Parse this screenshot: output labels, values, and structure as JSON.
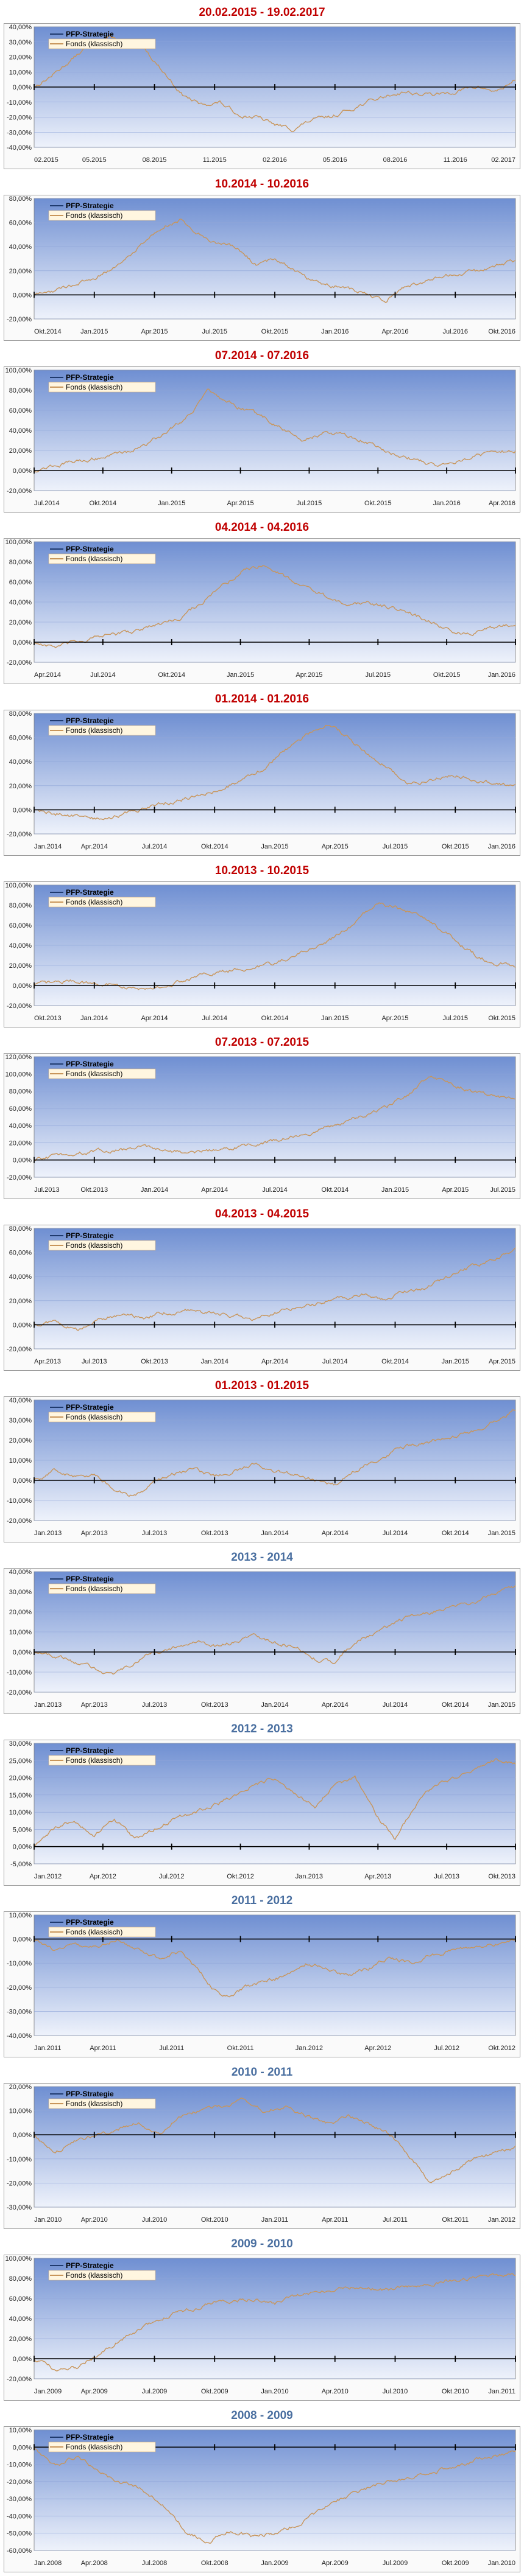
{
  "colors": {
    "title_red": "#c00000",
    "title_blue": "#4a6fa0",
    "strategy_line": "#1f3a6e",
    "fund_line": "#c8955a",
    "plot_bg_top": "#6f8fd2",
    "plot_bg_bottom": "#eef2fb"
  },
  "chart_data": [
    {
      "type": "line",
      "title": "20.02.2015 - 19.02.2017",
      "title_color": "red",
      "y_ticks": [
        "40,00%",
        "30,00%",
        "20,00%",
        "10,00%",
        "0,00%",
        "-10,00%",
        "-20,00%",
        "-30,00%",
        "-40,00%"
      ],
      "ylim": [
        -40,
        40
      ],
      "x_ticks": [
        "02.2015",
        "05.2015",
        "08.2015",
        "11.2015",
        "02.2016",
        "05.2016",
        "08.2016",
        "11.2016",
        "02.2017"
      ],
      "legend": "top-left",
      "series": [
        {
          "name": "PFP-Strategie",
          "values": [
            0,
            0
          ]
        },
        {
          "name": "Fonds (klassisch)",
          "values": [
            0,
            8,
            18,
            28,
            33,
            30,
            25,
            10,
            -5,
            -12,
            -10,
            -18,
            -20,
            -25,
            -28,
            -22,
            -20,
            -15,
            -10,
            -6,
            -3,
            -5,
            -5,
            -2,
            0,
            -3,
            5
          ]
        }
      ]
    },
    {
      "type": "line",
      "title": "10.2014 - 10.2016",
      "title_color": "red",
      "y_ticks": [
        "80,00%",
        "60,00%",
        "40,00%",
        "20,00%",
        "0,00%",
        "-20,00%"
      ],
      "ylim": [
        -20,
        80
      ],
      "x_ticks": [
        "Okt.2014",
        "Jan.2015",
        "Apr.2015",
        "Jul.2015",
        "Okt.2015",
        "Jan.2016",
        "Apr.2016",
        "Jul.2016",
        "Okt.2016"
      ],
      "legend": "top-left",
      "series": [
        {
          "name": "PFP-Strategie",
          "values": [
            0,
            0
          ]
        },
        {
          "name": "Fonds (klassisch)",
          "values": [
            0,
            3,
            8,
            12,
            20,
            30,
            45,
            58,
            62,
            50,
            42,
            38,
            25,
            30,
            22,
            12,
            8,
            5,
            0,
            -5,
            8,
            10,
            15,
            18,
            20,
            25,
            28
          ]
        }
      ]
    },
    {
      "type": "line",
      "title": "07.2014 - 07.2016",
      "title_color": "red",
      "y_ticks": [
        "100,00%",
        "80,00%",
        "60,00%",
        "40,00%",
        "20,00%",
        "0,00%",
        "-20,00%"
      ],
      "ylim": [
        -20,
        100
      ],
      "x_ticks": [
        "Jul.2014",
        "Okt.2014",
        "Jan.2015",
        "Apr.2015",
        "Jul.2015",
        "Okt.2015",
        "Jan.2016",
        "Apr.2016"
      ],
      "legend": "top-left",
      "series": [
        {
          "name": "PFP-Strategie",
          "values": [
            0,
            0
          ]
        },
        {
          "name": "Fonds (klassisch)",
          "values": [
            0,
            5,
            8,
            12,
            15,
            20,
            28,
            40,
            55,
            78,
            68,
            60,
            52,
            40,
            30,
            38,
            35,
            30,
            22,
            15,
            10,
            5,
            10,
            15,
            18,
            20
          ]
        }
      ]
    },
    {
      "type": "line",
      "title": "04.2014 - 04.2016",
      "title_color": "red",
      "y_ticks": [
        "100,00%",
        "80,00%",
        "60,00%",
        "40,00%",
        "20,00%",
        "0,00%",
        "-20,00%"
      ],
      "ylim": [
        -20,
        100
      ],
      "x_ticks": [
        "Apr.2014",
        "Jul.2014",
        "Okt.2014",
        "Jan.2015",
        "Apr.2015",
        "Jul.2015",
        "Okt.2015",
        "Jan.2016"
      ],
      "legend": "top-left",
      "series": [
        {
          "name": "PFP-Strategie",
          "values": [
            0,
            0
          ]
        },
        {
          "name": "Fonds (klassisch)",
          "values": [
            0,
            -5,
            0,
            5,
            8,
            12,
            18,
            25,
            40,
            55,
            72,
            78,
            65,
            55,
            45,
            35,
            40,
            35,
            28,
            20,
            10,
            8,
            15,
            18
          ]
        }
      ]
    },
    {
      "type": "line",
      "title": "01.2014 - 01.2016",
      "title_color": "red",
      "y_ticks": [
        "80,00%",
        "60,00%",
        "40,00%",
        "20,00%",
        "0,00%",
        "-20,00%"
      ],
      "ylim": [
        -20,
        80
      ],
      "x_ticks": [
        "Jan.2014",
        "Apr.2014",
        "Jul.2014",
        "Okt.2014",
        "Jan.2015",
        "Apr.2015",
        "Jul.2015",
        "Okt.2015",
        "Jan.2016"
      ],
      "legend": "top-left",
      "series": [
        {
          "name": "PFP-Strategie",
          "values": [
            0,
            0
          ]
        },
        {
          "name": "Fonds (klassisch)",
          "values": [
            0,
            -3,
            -5,
            -8,
            -5,
            0,
            5,
            8,
            12,
            18,
            25,
            35,
            50,
            62,
            72,
            60,
            45,
            35,
            20,
            25,
            30,
            25,
            22,
            20
          ]
        }
      ]
    },
    {
      "type": "line",
      "title": "10.2013 - 10.2015",
      "title_color": "red",
      "y_ticks": [
        "100,00%",
        "80,00%",
        "60,00%",
        "40,00%",
        "20,00%",
        "0,00%",
        "-20,00%"
      ],
      "ylim": [
        -20,
        100
      ],
      "x_ticks": [
        "Okt.2013",
        "Jan.2014",
        "Apr.2014",
        "Jul.2014",
        "Okt.2014",
        "Jan.2015",
        "Apr.2015",
        "Jul.2015",
        "Okt.2015"
      ],
      "legend": "top-left",
      "series": [
        {
          "name": "PFP-Strategie",
          "values": [
            0,
            0
          ]
        },
        {
          "name": "Fonds (klassisch)",
          "values": [
            0,
            3,
            5,
            2,
            0,
            -3,
            -2,
            2,
            8,
            12,
            15,
            18,
            22,
            30,
            38,
            48,
            62,
            82,
            78,
            70,
            60,
            45,
            30,
            22,
            20
          ]
        }
      ]
    },
    {
      "type": "line",
      "title": "07.2013 - 07.2015",
      "title_color": "red",
      "y_ticks": [
        "120,00%",
        "100,00%",
        "80,00%",
        "60,00%",
        "40,00%",
        "20,00%",
        "0,00%",
        "-20,00%"
      ],
      "ylim": [
        -20,
        120
      ],
      "x_ticks": [
        "Jul.2013",
        "Okt.2013",
        "Jan.2014",
        "Apr.2014",
        "Jul.2014",
        "Okt.2014",
        "Jan.2015",
        "Apr.2015",
        "Jul.2015"
      ],
      "legend": "top-left",
      "series": [
        {
          "name": "PFP-Strategie",
          "values": [
            0,
            0
          ]
        },
        {
          "name": "Fonds (klassisch)",
          "values": [
            0,
            5,
            8,
            10,
            12,
            15,
            12,
            8,
            10,
            15,
            18,
            22,
            28,
            35,
            42,
            50,
            60,
            75,
            95,
            90,
            80,
            75,
            70
          ]
        }
      ]
    },
    {
      "type": "line",
      "title": "04.2013 - 04.2015",
      "title_color": "red",
      "y_ticks": [
        "80,00%",
        "60,00%",
        "40,00%",
        "20,00%",
        "0,00%",
        "-20,00%"
      ],
      "ylim": [
        -20,
        80
      ],
      "x_ticks": [
        "Apr.2013",
        "Jul.2013",
        "Okt.2013",
        "Jan.2014",
        "Apr.2014",
        "Jul.2014",
        "Okt.2014",
        "Jan.2015",
        "Apr.2015"
      ],
      "legend": "top-left",
      "series": [
        {
          "name": "PFP-Strategie",
          "values": [
            0,
            0
          ]
        },
        {
          "name": "Fonds (klassisch)",
          "values": [
            0,
            3,
            -5,
            5,
            8,
            6,
            10,
            12,
            10,
            8,
            5,
            10,
            15,
            18,
            22,
            25,
            22,
            28,
            32,
            40,
            48,
            55,
            62
          ]
        }
      ]
    },
    {
      "type": "line",
      "title": "01.2013 - 01.2015",
      "title_color": "red",
      "y_ticks": [
        "40,00%",
        "30,00%",
        "20,00%",
        "10,00%",
        "0,00%",
        "-10,00%",
        "-20,00%"
      ],
      "ylim": [
        -20,
        40
      ],
      "x_ticks": [
        "Jan.2013",
        "Apr.2013",
        "Jul.2013",
        "Okt.2013",
        "Jan.2014",
        "Apr.2014",
        "Jul.2014",
        "Okt.2014",
        "Jan.2015"
      ],
      "legend": "top-left",
      "series": [
        {
          "name": "PFP-Strategie",
          "values": [
            0,
            0
          ]
        },
        {
          "name": "Fonds (klassisch)",
          "values": [
            0,
            5,
            2,
            3,
            -5,
            -8,
            0,
            3,
            5,
            2,
            5,
            8,
            5,
            3,
            0,
            -2,
            5,
            10,
            15,
            18,
            20,
            22,
            25,
            30,
            35
          ]
        }
      ]
    },
    {
      "type": "line",
      "title": "2013 - 2014",
      "title_color": "blue",
      "y_ticks": [
        "40,00%",
        "30,00%",
        "20,00%",
        "10,00%",
        "0,00%",
        "-10,00%",
        "-20,00%"
      ],
      "ylim": [
        -20,
        40
      ],
      "x_ticks": [
        "Jan.2013",
        "Apr.2013",
        "Jul.2013",
        "Okt.2013",
        "Jan.2014",
        "Apr.2014",
        "Jul.2014",
        "Okt.2014",
        "Jan.2015"
      ],
      "legend": "top-left",
      "series": [
        {
          "name": "PFP-Strategie",
          "values": [
            0,
            0
          ]
        },
        {
          "name": "Fonds (klassisch)",
          "values": [
            0,
            -2,
            -5,
            -8,
            -12,
            -5,
            0,
            2,
            5,
            3,
            5,
            8,
            5,
            3,
            -3,
            -5,
            5,
            10,
            15,
            18,
            20,
            22,
            25,
            30,
            33
          ]
        }
      ]
    },
    {
      "type": "line",
      "title": "2012 - 2013",
      "title_color": "blue",
      "y_ticks": [
        "30,00%",
        "25,00%",
        "20,00%",
        "15,00%",
        "10,00%",
        "5,00%",
        "0,00%",
        "-5,00%"
      ],
      "ylim": [
        -5,
        30
      ],
      "x_ticks": [
        "Jan.2012",
        "Apr.2012",
        "Jul.2012",
        "Okt.2012",
        "Jan.2013",
        "Apr.2013",
        "Jul.2013",
        "Okt.2013"
      ],
      "legend": "top-left",
      "series": [
        {
          "name": "PFP-Strategie",
          "values": [
            0,
            0
          ]
        },
        {
          "name": "Fonds (klassisch)",
          "values": [
            0,
            5,
            8,
            3,
            8,
            2,
            5,
            8,
            10,
            12,
            15,
            18,
            20,
            15,
            12,
            18,
            20,
            10,
            2,
            12,
            18,
            20,
            22,
            25,
            24
          ]
        }
      ]
    },
    {
      "type": "line",
      "title": "2011 - 2012",
      "title_color": "blue",
      "y_ticks": [
        "10,00%",
        "0,00%",
        "-10,00%",
        "-20,00%",
        "-30,00%",
        "-40,00%"
      ],
      "ylim": [
        -40,
        10
      ],
      "x_ticks": [
        "Jan.2011",
        "Apr.2011",
        "Jul.2011",
        "Okt.2011",
        "Jan.2012",
        "Apr.2012",
        "Jul.2012",
        "Okt.2012"
      ],
      "legend": "top-left",
      "series": [
        {
          "name": "PFP-Strategie",
          "values": [
            0,
            0
          ]
        },
        {
          "name": "Fonds (klassisch)",
          "values": [
            0,
            -5,
            -2,
            -3,
            0,
            -5,
            -8,
            -5,
            -15,
            -25,
            -20,
            -18,
            -15,
            -10,
            -12,
            -15,
            -12,
            -8,
            -10,
            -6,
            -5,
            -3,
            -2,
            0
          ]
        }
      ]
    },
    {
      "type": "line",
      "title": "2010 - 2011",
      "title_color": "blue",
      "y_ticks": [
        "20,00%",
        "10,00%",
        "0,00%",
        "-10,00%",
        "-20,00%",
        "-30,00%"
      ],
      "ylim": [
        -30,
        20
      ],
      "x_ticks": [
        "Jan.2010",
        "Apr.2010",
        "Jul.2010",
        "Okt.2010",
        "Jan.2011",
        "Apr.2011",
        "Jul.2011",
        "Okt.2011",
        "Jan.2012"
      ],
      "legend": "top-left",
      "series": [
        {
          "name": "PFP-Strategie",
          "values": [
            0,
            0
          ]
        },
        {
          "name": "Fonds (klassisch)",
          "values": [
            0,
            -8,
            -2,
            0,
            2,
            5,
            0,
            8,
            10,
            12,
            15,
            10,
            12,
            8,
            5,
            8,
            5,
            0,
            -10,
            -20,
            -15,
            -10,
            -8,
            -5
          ]
        }
      ]
    },
    {
      "type": "line",
      "title": "2009 - 2010",
      "title_color": "blue",
      "y_ticks": [
        "100,00%",
        "80,00%",
        "60,00%",
        "40,00%",
        "20,00%",
        "0,00%",
        "-20,00%"
      ],
      "ylim": [
        -20,
        100
      ],
      "x_ticks": [
        "Jan.2009",
        "Apr.2009",
        "Jul.2009",
        "Okt.2009",
        "Jan.2010",
        "Apr.2010",
        "Jul.2010",
        "Okt.2010",
        "Jan.2011"
      ],
      "legend": "top-left",
      "series": [
        {
          "name": "PFP-Strategie",
          "values": [
            0,
            0
          ]
        },
        {
          "name": "Fonds (klassisch)",
          "values": [
            0,
            -12,
            -8,
            5,
            20,
            32,
            42,
            48,
            55,
            58,
            60,
            55,
            62,
            65,
            70,
            72,
            68,
            72,
            75,
            78,
            80,
            82,
            84
          ]
        }
      ]
    },
    {
      "type": "line",
      "title": "2008 - 2009",
      "title_color": "blue",
      "y_ticks": [
        "10,00%",
        "0,00%",
        "-10,00%",
        "-20,00%",
        "-30,00%",
        "-40,00%",
        "-50,00%",
        "-60,00%"
      ],
      "ylim": [
        -60,
        10
      ],
      "x_ticks": [
        "Jan.2008",
        "Apr.2008",
        "Jul.2008",
        "Okt.2008",
        "Jan.2009",
        "Apr.2009",
        "Jul.2009",
        "Okt.2009",
        "Jan.2010"
      ],
      "legend": "top-left",
      "series": [
        {
          "name": "PFP-Strategie",
          "values": [
            0,
            0
          ]
        },
        {
          "name": "Fonds (klassisch)",
          "values": [
            0,
            -10,
            -5,
            -15,
            -20,
            -25,
            -35,
            -50,
            -55,
            -48,
            -52,
            -50,
            -45,
            -38,
            -30,
            -25,
            -20,
            -18,
            -15,
            -12,
            -8,
            -5,
            -3
          ]
        }
      ]
    }
  ]
}
